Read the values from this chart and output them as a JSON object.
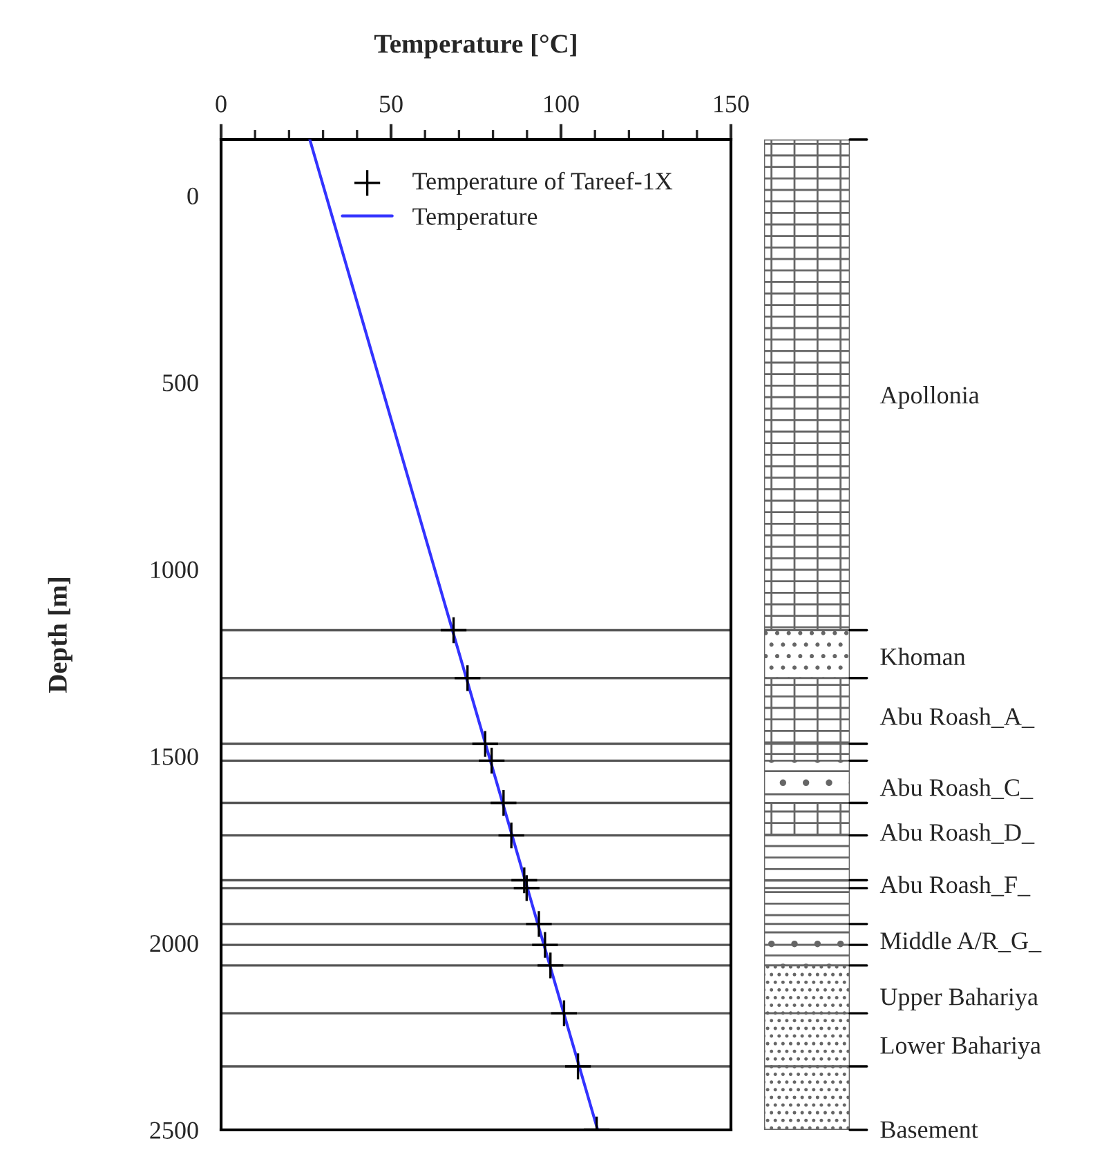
{
  "chart_data": {
    "type": "scatter",
    "xlabel": "Temperature [°C]",
    "ylabel": "Depth [m]",
    "xlim": [
      0,
      150
    ],
    "xticks": [
      0,
      50,
      100,
      150
    ],
    "ylim": [
      2500,
      -150
    ],
    "yticks": [
      0,
      500,
      1000,
      1500,
      2000,
      2500
    ],
    "series": [
      {
        "name": "Temperature of Tareef-1X",
        "type": "scatter",
        "marker": "cross",
        "color": "#000000",
        "x": [
          68.4,
          72.5,
          77.7,
          79.6,
          83.1,
          85.4,
          89.2,
          89.9,
          93.5,
          95.3,
          96.9,
          100.9,
          105.0,
          110.5
        ],
        "values": [
          1163,
          1291,
          1467,
          1512,
          1625,
          1712,
          1832,
          1853,
          1949,
          2005,
          2060,
          2188,
          2330,
          2499
        ]
      },
      {
        "name": "Temperature",
        "type": "line",
        "marker": "none",
        "color": "#3333ff",
        "x": [
          26.1,
          110.8
        ],
        "values": [
          -150,
          2500
        ]
      }
    ],
    "ref_lines": [
      {
        "axis": "y",
        "value": 1163,
        "color": "#555555"
      },
      {
        "axis": "y",
        "value": 1291,
        "color": "#555555"
      },
      {
        "axis": "y",
        "value": 1467,
        "color": "#555555"
      },
      {
        "axis": "y",
        "value": 1512,
        "color": "#555555"
      },
      {
        "axis": "y",
        "value": 1625,
        "color": "#555555"
      },
      {
        "axis": "y",
        "value": 1712,
        "color": "#555555"
      },
      {
        "axis": "y",
        "value": 1832,
        "color": "#555555"
      },
      {
        "axis": "y",
        "value": 1853,
        "color": "#555555"
      },
      {
        "axis": "y",
        "value": 1949,
        "color": "#555555"
      },
      {
        "axis": "y",
        "value": 2005,
        "color": "#555555"
      },
      {
        "axis": "y",
        "value": 2060,
        "color": "#555555"
      },
      {
        "axis": "y",
        "value": 2188,
        "color": "#555555"
      },
      {
        "axis": "y",
        "value": 2330,
        "color": "#555555"
      }
    ],
    "annotations": [
      "Apollonia",
      "Khoman",
      "Abu Roash_A_",
      "Abu Roash_C_",
      "Abu Roash_D_",
      "Abu Roash_F_",
      "Middle A/R_G_",
      "Upper Bahariya",
      "Lower Bahariya",
      "Basement"
    ],
    "legend": "top right",
    "grid": false
  }
}
